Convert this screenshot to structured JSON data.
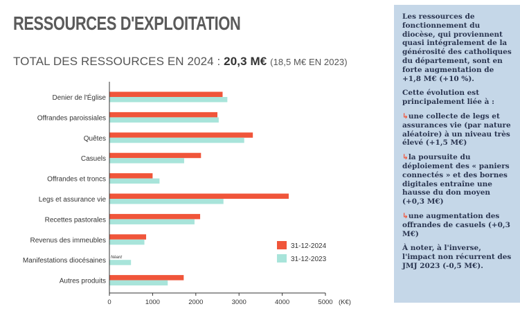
{
  "header": {
    "title": "RESSOURCES D'EXPLOITATION",
    "subtitle_prefix": "TOTAL DES RESSOURCES EN 2024 :",
    "subtitle_total": "20,3 M€",
    "subtitle_prev": "(18,5 M€ EN 2023)"
  },
  "chart_data": {
    "type": "bar",
    "orientation": "horizontal",
    "categories": [
      "Denier de l'Église",
      "Offrandes paroissiales",
      "Quêtes",
      "Casuels",
      "Offrandes et troncs",
      "Legs et assurance vie",
      "Recettes pastorales",
      "Revenus des immeubles",
      "Manifestations diocésaines",
      "Autres produits"
    ],
    "series": [
      {
        "name": "31-12-2024",
        "color": "#f0553a",
        "values": [
          2620,
          2500,
          3320,
          2120,
          1000,
          4150,
          2100,
          850,
          0,
          1720
        ]
      },
      {
        "name": "31-12-2023",
        "color": "#a8e4da",
        "values": [
          2730,
          2530,
          3120,
          1730,
          1160,
          2640,
          1970,
          810,
          500,
          1350
        ]
      }
    ],
    "annotations": [
      {
        "category": "Manifestations diocésaines",
        "series": "31-12-2024",
        "text": "Néant"
      }
    ],
    "xlim": [
      0,
      5000
    ],
    "xticks": [
      "0",
      "1000",
      "2000",
      "3000",
      "4000",
      "5000"
    ],
    "xlabel": "(K€)",
    "legend_position": "lower-right",
    "grid": false
  },
  "sidebar": {
    "intro": "Les ressources de fonctionnement du diocèse, qui proviennent quasi intégralement de la générosité des catholiques du département, sont en forte augmentation de +1,8 M€ (+10 %).",
    "lead": "Cette évolution est principalement liée à :",
    "arrow_glyph": "↳",
    "bullets": [
      "une collecte de legs et assurances vie (par nature aléatoire) à un niveau très élevé (+1,5 M€)",
      "la poursuite du déploiement des « paniers connectés » et des bornes digitales entraîne une hausse du don moyen (+0,3 M€)",
      "une augmentation des offrandes de casuels (+0,3 M€)"
    ],
    "note": "À noter, à l'inverse, l'impact non récurrent des JMJ 2023 (-0,5 M€)."
  }
}
